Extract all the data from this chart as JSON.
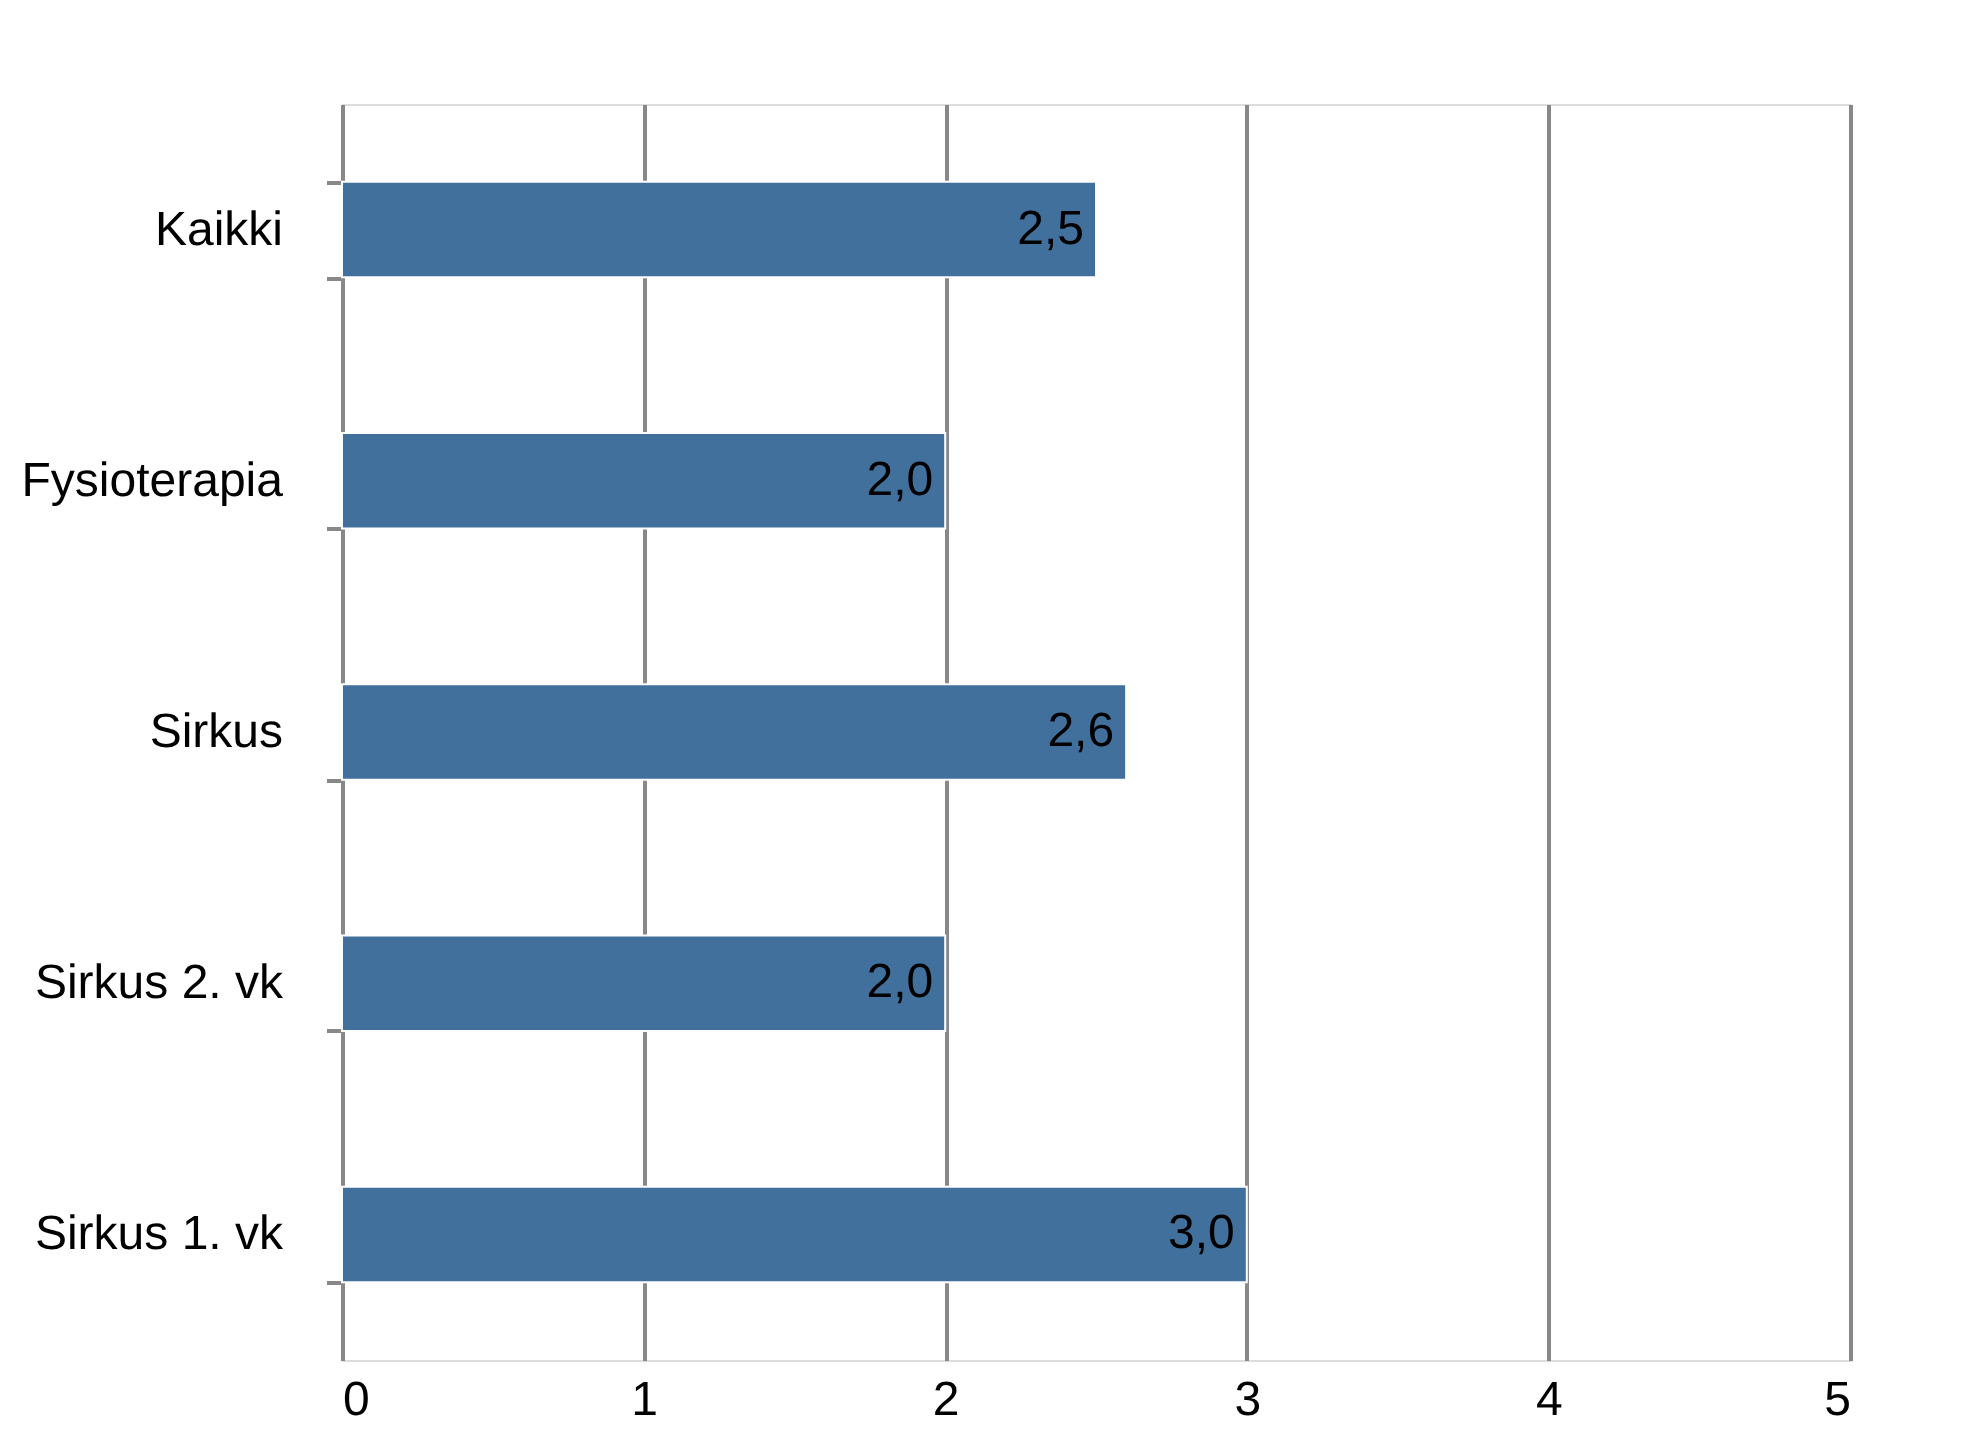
{
  "chart_data": {
    "type": "bar",
    "orientation": "horizontal",
    "categories": [
      "Kaikki",
      "Fysioterapia",
      "Sirkus",
      "Sirkus 2. vk",
      "Sirkus 1. vk"
    ],
    "values": [
      2.5,
      2.0,
      2.6,
      2.0,
      3.0
    ],
    "value_labels": [
      "2,5",
      "2,0",
      "2,6",
      "2,0",
      "3,0"
    ],
    "color": "#41709c",
    "xlim": [
      0,
      5
    ],
    "xticks": [
      0,
      1,
      2,
      3,
      4,
      5
    ],
    "grid": "x"
  }
}
